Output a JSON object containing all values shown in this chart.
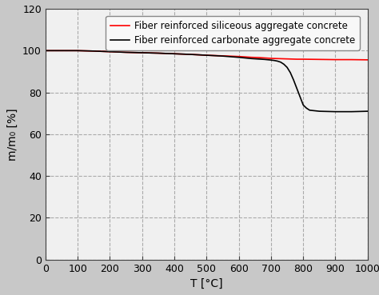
{
  "title": "",
  "xlabel": "T [°C]",
  "ylabel": "m/m₀ [%]",
  "xlim": [
    0,
    1000
  ],
  "ylim": [
    0,
    120
  ],
  "xticks": [
    0,
    100,
    200,
    300,
    400,
    500,
    600,
    700,
    800,
    900,
    1000
  ],
  "yticks": [
    0,
    20,
    40,
    60,
    80,
    100,
    120
  ],
  "siliceous_x": [
    0,
    50,
    100,
    150,
    200,
    250,
    300,
    350,
    400,
    450,
    500,
    550,
    600,
    620,
    640,
    660,
    680,
    700,
    720,
    740,
    760,
    780,
    800,
    850,
    900,
    950,
    1000
  ],
  "siliceous_y": [
    100.0,
    100.0,
    100.0,
    99.8,
    99.5,
    99.2,
    99.0,
    98.8,
    98.5,
    98.2,
    97.8,
    97.5,
    97.2,
    97.0,
    96.8,
    96.7,
    96.5,
    96.3,
    96.2,
    96.1,
    96.0,
    95.9,
    95.9,
    95.8,
    95.7,
    95.7,
    95.6
  ],
  "carbonate_x": [
    0,
    50,
    100,
    150,
    200,
    250,
    300,
    350,
    400,
    450,
    500,
    550,
    600,
    620,
    640,
    660,
    680,
    700,
    710,
    720,
    730,
    740,
    750,
    760,
    770,
    780,
    790,
    800,
    810,
    820,
    850,
    900,
    950,
    1000
  ],
  "carbonate_y": [
    100.0,
    100.0,
    100.0,
    99.8,
    99.5,
    99.2,
    99.0,
    98.8,
    98.5,
    98.2,
    97.8,
    97.4,
    96.8,
    96.5,
    96.2,
    96.0,
    95.8,
    95.5,
    95.3,
    95.0,
    94.5,
    93.5,
    92.0,
    89.5,
    86.0,
    82.0,
    78.0,
    74.0,
    72.5,
    71.5,
    71.0,
    70.8,
    70.8,
    71.0
  ],
  "siliceous_color": "#ff0000",
  "carbonate_color": "#000000",
  "line_width": 1.2,
  "legend_siliceous": "Fiber reinforced siliceous aggregate concrete",
  "legend_carbonate": "Fiber reinforced carbonate aggregate concrete",
  "grid_color": "#aaaaaa",
  "grid_linestyle": "--",
  "axes_facecolor": "#f0f0f0",
  "fig_facecolor": "#c8c8c8",
  "font_size_label": 10,
  "font_size_tick": 9,
  "font_size_legend": 8.5,
  "spine_color": "#404040"
}
